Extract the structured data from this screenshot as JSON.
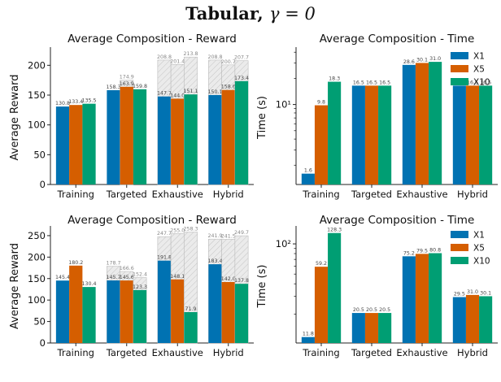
{
  "figure": {
    "title_bold": "Tabular,",
    "title_math": "γ = 0"
  },
  "colors": {
    "X1": "#0072b2",
    "X5": "#d55e00",
    "X10": "#009e73",
    "ghost": "#ebebeb"
  },
  "chart_data": [
    {
      "type": "bar",
      "title": "Average Composition - Reward",
      "ylabel": "Average Reward",
      "categories": [
        "Training",
        "Targeted",
        "Exhaustive",
        "Hybrid"
      ],
      "ylim": [
        0,
        225
      ],
      "yticks": [
        0,
        50,
        100,
        150,
        200
      ],
      "yscale": "linear",
      "legend": "",
      "series": [
        {
          "key": "X1",
          "values": [
            130.8,
            158.3,
            147.7,
            150.1
          ]
        },
        {
          "key": "X5",
          "values": [
            133.4,
            163.9,
            144.0,
            158.6
          ]
        },
        {
          "key": "X10",
          "values": [
            135.5,
            159.8,
            151.1,
            173.4
          ]
        }
      ],
      "upper_bound": [
        null,
        [
          null,
          174.9,
          null
        ],
        [
          208.8,
          201.4,
          213.8
        ],
        [
          208.8,
          200.7,
          207.7
        ]
      ],
      "labels": [
        [
          "130.8",
          "133.4",
          "135.5"
        ],
        [
          "158.3",
          "163.9",
          "159.8"
        ],
        [
          "147.7",
          "144.0",
          "151.1"
        ],
        [
          "150.1",
          "158.6",
          "173.4"
        ]
      ],
      "upper_labels": [
        [
          null,
          null,
          null
        ],
        [
          null,
          "174.9",
          null
        ],
        [
          "208.8",
          "201.4",
          "213.8"
        ],
        [
          "208.8",
          "200.7",
          "207.7"
        ]
      ]
    },
    {
      "type": "bar",
      "title": "Average Composition - Time",
      "ylabel": "Time (s)",
      "categories": [
        "Training",
        "Targeted",
        "Exhaustive",
        "Hybrid"
      ],
      "ylim": [
        1.2,
        42
      ],
      "yticks": [
        10
      ],
      "ytick_labels": [
        "10¹"
      ],
      "yscale": "log",
      "legend": "top-right",
      "series": [
        {
          "name": "X1",
          "key": "X1",
          "values": [
            1.6,
            16.5,
            28.6,
            16.5
          ]
        },
        {
          "name": "X5",
          "key": "X5",
          "values": [
            9.8,
            16.5,
            30.1,
            16.5
          ]
        },
        {
          "name": "X10",
          "key": "X10",
          "values": [
            18.3,
            16.5,
            31.0,
            16.5
          ]
        }
      ],
      "labels": [
        [
          "1.6",
          "9.8",
          "18.3"
        ],
        [
          "16.5",
          "16.5",
          "16.5"
        ],
        [
          "28.6",
          "30.1",
          "31.0"
        ],
        [
          "16.5",
          "16.5",
          "16.5"
        ]
      ]
    },
    {
      "type": "bar",
      "title": "Average Composition - Reward",
      "ylabel": "Average Reward",
      "categories": [
        "Training",
        "Targeted",
        "Exhaustive",
        "Hybrid"
      ],
      "ylim": [
        0,
        265
      ],
      "yticks": [
        0,
        50,
        100,
        150,
        200,
        250
      ],
      "yscale": "linear",
      "legend": "",
      "series": [
        {
          "key": "X1",
          "values": [
            145.4,
            145.7,
            191.8,
            183.4
          ]
        },
        {
          "key": "X5",
          "values": [
            180.2,
            145.6,
            148.1,
            142.0
          ]
        },
        {
          "key": "X10",
          "values": [
            130.4,
            123.3,
            71.9,
            137.8
          ]
        }
      ],
      "upper_bound": [
        null,
        [
          178.7,
          166.6,
          152.4
        ],
        [
          247.7,
          255.0,
          258.3
        ],
        [
          241.9,
          241.5,
          249.7
        ]
      ],
      "labels": [
        [
          "145.4",
          "180.2",
          "130.4"
        ],
        [
          "145.7",
          "145.6",
          "123.3"
        ],
        [
          "191.8",
          "148.1",
          "71.9"
        ],
        [
          "183.4",
          "142.0",
          "137.8"
        ]
      ],
      "upper_labels": [
        [
          null,
          null,
          null
        ],
        [
          "178.7",
          "166.6",
          "152.4"
        ],
        [
          "247.7",
          "255.0",
          "258.3"
        ],
        [
          "241.9",
          "241.5",
          "249.7"
        ]
      ]
    },
    {
      "type": "bar",
      "title": "Average Composition - Time",
      "ylabel": "Time (s)",
      "categories": [
        "Training",
        "Targeted",
        "Exhaustive",
        "Hybrid"
      ],
      "ylim": [
        10.3,
        140
      ],
      "yticks": [
        100
      ],
      "ytick_labels": [
        "10²"
      ],
      "yscale": "log",
      "legend": "top-right",
      "series": [
        {
          "name": "X1",
          "key": "X1",
          "values": [
            11.8,
            20.5,
            75.2,
            29.5
          ]
        },
        {
          "name": "X5",
          "key": "X5",
          "values": [
            59.2,
            20.5,
            79.5,
            31.0
          ]
        },
        {
          "name": "X10",
          "key": "X10",
          "values": [
            128.3,
            20.5,
            80.8,
            30.1
          ]
        }
      ],
      "labels": [
        [
          "11.8",
          "59.2",
          "128.3"
        ],
        [
          "20.5",
          "20.5",
          "20.5"
        ],
        [
          "75.2",
          "79.5",
          "80.8"
        ],
        [
          "29.5",
          "31.0",
          "30.1"
        ]
      ]
    }
  ]
}
